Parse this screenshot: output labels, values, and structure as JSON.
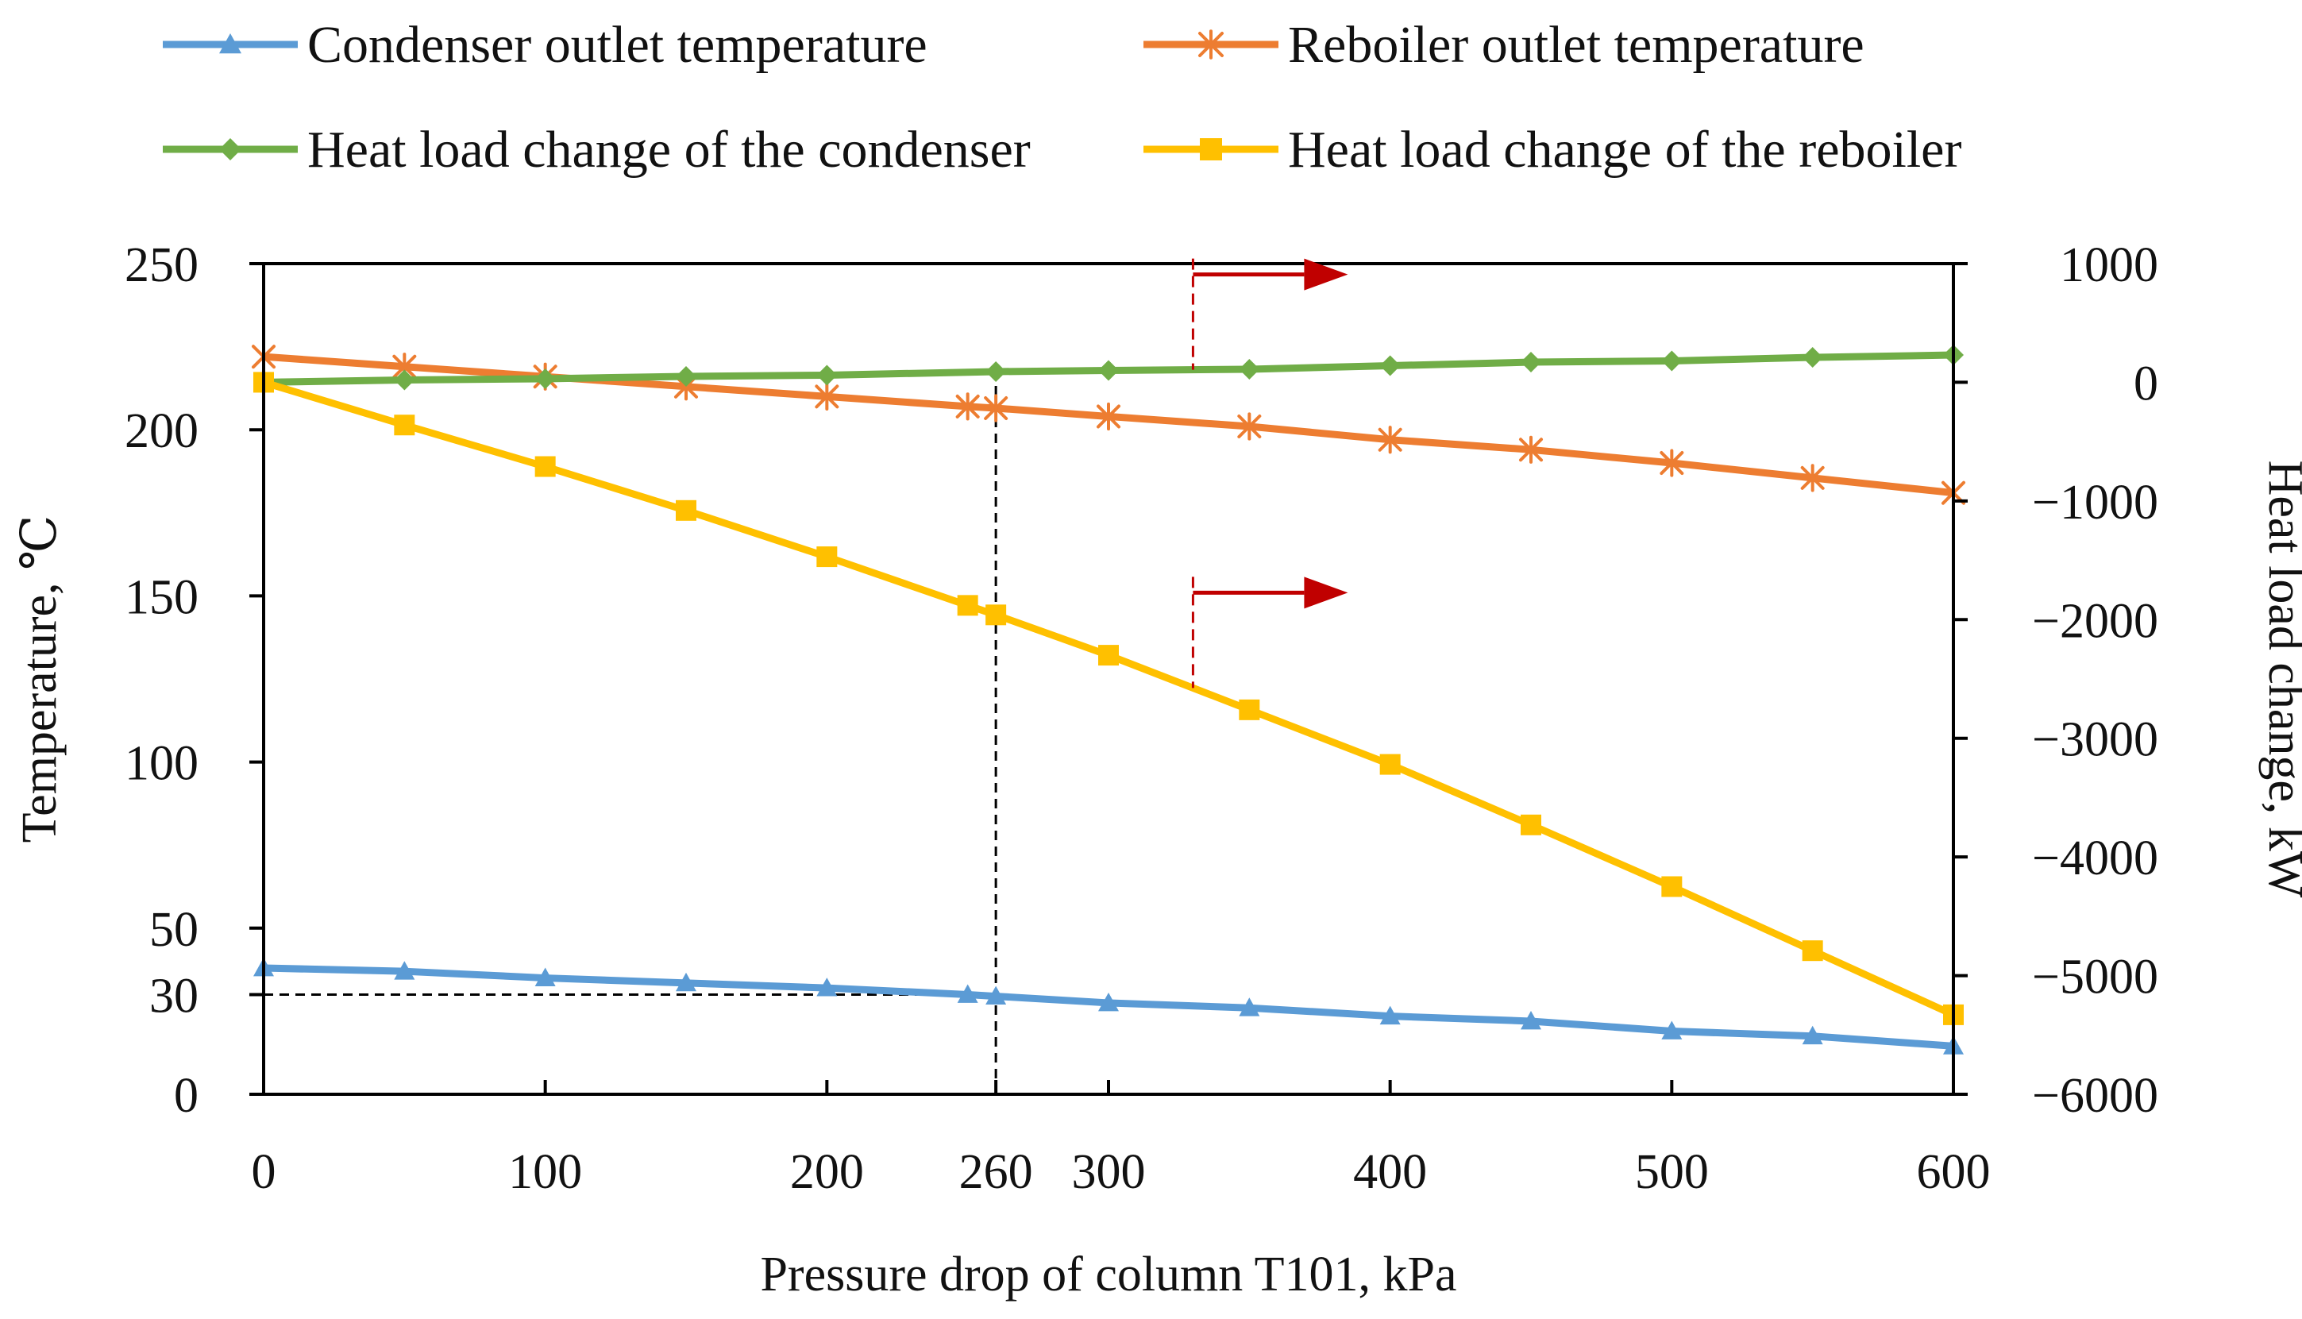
{
  "chart_data": {
    "type": "line",
    "title": "",
    "xlabel": "Pressure drop of column T101, kPa",
    "ylabel": "Temperature, ℃",
    "y2label": "Heat load change, kW",
    "x_ticks": [
      "0",
      "100",
      "200",
      "260",
      "300",
      "400",
      "500",
      "600"
    ],
    "x_tick_values": [
      0,
      100,
      200,
      260,
      300,
      400,
      500,
      600
    ],
    "y_ticks": [
      "0",
      "30",
      "50",
      "100",
      "150",
      "200",
      "250"
    ],
    "y_tick_values": [
      0,
      30,
      50,
      100,
      150,
      200,
      250
    ],
    "y2_ticks": [
      "1000",
      "0",
      "−1000",
      "−2000",
      "−3000",
      "−4000",
      "−5000",
      "−6000"
    ],
    "y2_tick_values": [
      1000,
      0,
      -1000,
      -2000,
      -3000,
      -4000,
      -5000,
      -6000
    ],
    "xlim": [
      0,
      600
    ],
    "ylim": [
      0,
      250
    ],
    "y2lim": [
      -6000,
      1000
    ],
    "legend_position": "top",
    "grid": false,
    "reference_lines": [
      {
        "axis": "x",
        "value": 260,
        "y_from": 0,
        "y_to": 220,
        "style": "dashed"
      },
      {
        "axis": "y",
        "value": 30,
        "x_from": 0,
        "x_to": 260,
        "style": "dashed"
      }
    ],
    "annotations": [
      {
        "type": "arrow",
        "direction": "right",
        "target_series": "Heat load change of the condenser",
        "at_x": 330,
        "color": "#C00000"
      },
      {
        "type": "arrow",
        "direction": "right",
        "target_series": "Heat load change of the reboiler",
        "at_x": 330,
        "color": "#C00000"
      }
    ],
    "series": [
      {
        "name": "Condenser outlet temperature",
        "axis": "left",
        "color": "#5B9BD5",
        "marker": "triangle",
        "x": [
          0,
          50,
          100,
          150,
          200,
          250,
          260,
          300,
          350,
          400,
          450,
          500,
          550,
          600
        ],
        "values": [
          38,
          37,
          35,
          33.5,
          32,
          30,
          29.5,
          27.5,
          26,
          23.5,
          22,
          19,
          17.5,
          14.5
        ]
      },
      {
        "name": "Reboiler outlet temperature",
        "axis": "left",
        "color": "#ED7D31",
        "marker": "star",
        "x": [
          0,
          50,
          100,
          150,
          200,
          250,
          260,
          300,
          350,
          400,
          450,
          500,
          550,
          600
        ],
        "values": [
          222,
          219,
          216,
          213,
          210,
          207,
          206.5,
          204,
          201,
          197,
          194,
          190,
          185.5,
          181
        ]
      },
      {
        "name": "Heat load change of the condenser",
        "axis": "right",
        "color": "#70AD47",
        "marker": "diamond",
        "x": [
          0,
          50,
          100,
          150,
          200,
          260,
          300,
          350,
          400,
          450,
          500,
          550,
          600
        ],
        "values": [
          0,
          20,
          30,
          50,
          60,
          90,
          100,
          110,
          140,
          170,
          180,
          210,
          230
        ]
      },
      {
        "name": "Heat load change of the reboiler",
        "axis": "right",
        "color": "#FFC000",
        "marker": "square",
        "x": [
          0,
          50,
          100,
          150,
          200,
          250,
          260,
          300,
          350,
          400,
          450,
          500,
          550,
          600
        ],
        "values": [
          0,
          -360,
          -710,
          -1080,
          -1470,
          -1880,
          -1960,
          -2300,
          -2760,
          -3220,
          -3730,
          -4250,
          -4790,
          -5330
        ]
      }
    ]
  }
}
